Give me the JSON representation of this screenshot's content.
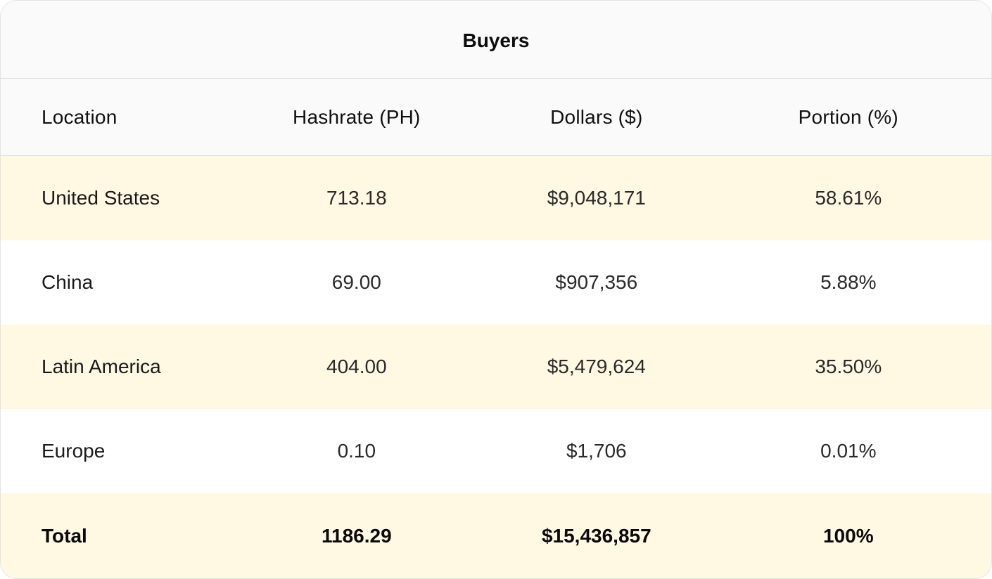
{
  "table": {
    "title": "Buyers",
    "columns": [
      "Location",
      "Hashrate (PH)",
      "Dollars ($)",
      "Portion (%)"
    ],
    "rows": [
      {
        "location": "United States",
        "hashrate": "713.18",
        "dollars": "$9,048,171",
        "portion": "58.61%"
      },
      {
        "location": "China",
        "hashrate": "69.00",
        "dollars": "$907,356",
        "portion": "5.88%"
      },
      {
        "location": "Latin America",
        "hashrate": "404.00",
        "dollars": "$5,479,624",
        "portion": "35.50%"
      },
      {
        "location": "Europe",
        "hashrate": "0.10",
        "dollars": "$1,706",
        "portion": "0.01%"
      }
    ],
    "total": {
      "location": "Total",
      "hashrate": "1186.29",
      "dollars": "$15,436,857",
      "portion": "100%"
    }
  },
  "colors": {
    "shaded_row": "#fff8e3",
    "header_bg": "#fafafa",
    "border": "#dedede"
  }
}
